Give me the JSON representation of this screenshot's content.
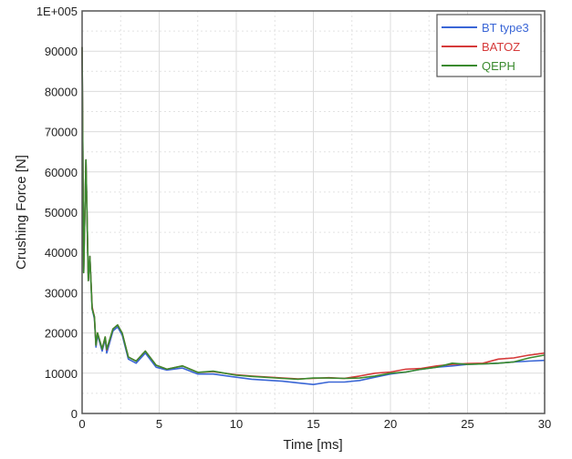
{
  "chart_data": {
    "type": "line",
    "xlabel": "Time [ms]",
    "ylabel": "Crushing Force [N]",
    "xlim": [
      0,
      30
    ],
    "ylim": [
      0,
      100000
    ],
    "xticks": [
      0,
      5,
      10,
      15,
      20,
      25,
      30
    ],
    "xtick_labels": [
      "0",
      "5",
      "10",
      "15",
      "20",
      "25",
      "30"
    ],
    "yticks": [
      0,
      10000,
      20000,
      30000,
      40000,
      50000,
      60000,
      70000,
      80000,
      90000,
      100000
    ],
    "ytick_labels": [
      "0",
      "10000",
      "20000",
      "30000",
      "40000",
      "50000",
      "60000",
      "70000",
      "80000",
      "90000",
      "1E+005"
    ],
    "grid": true,
    "legend_position": "top-right",
    "series": [
      {
        "name": "BT type3",
        "color": "#3a66d6",
        "x": [
          0,
          0.1,
          0.25,
          0.4,
          0.5,
          0.65,
          0.8,
          0.9,
          1.0,
          1.3,
          1.5,
          1.6,
          2.0,
          2.3,
          2.6,
          3.0,
          3.5,
          4.1,
          4.8,
          5.5,
          6.5,
          7.5,
          8.5,
          10,
          11,
          13,
          14,
          15,
          16,
          17,
          18,
          19,
          20,
          21,
          22,
          23,
          24,
          25,
          26,
          27,
          28,
          29,
          30
        ],
        "y": [
          91000,
          35000,
          63000,
          33000,
          39000,
          26000,
          23500,
          16500,
          19500,
          15500,
          18500,
          15000,
          20500,
          21500,
          19500,
          13500,
          12500,
          15000,
          11500,
          10800,
          11300,
          9800,
          9800,
          9000,
          8500,
          8000,
          7600,
          7200,
          7800,
          7800,
          8200,
          9000,
          9800,
          10300,
          11000,
          11500,
          11800,
          12200,
          12300,
          12500,
          12800,
          13000,
          13200
        ]
      },
      {
        "name": "BATOZ",
        "color": "#d63a3a",
        "x": [
          0,
          0.1,
          0.25,
          0.4,
          0.5,
          0.65,
          0.8,
          0.9,
          1.0,
          1.3,
          1.5,
          1.6,
          2.0,
          2.3,
          2.6,
          3.0,
          3.5,
          4.1,
          4.8,
          5.5,
          6.5,
          7.5,
          8.5,
          10,
          11,
          13,
          14,
          15,
          16,
          17,
          18,
          19,
          20,
          21,
          22,
          23,
          24,
          25,
          26,
          27,
          28,
          29,
          30
        ],
        "y": [
          91000,
          35000,
          63000,
          33000,
          39000,
          26500,
          24000,
          17000,
          20000,
          16000,
          19000,
          15800,
          21000,
          22000,
          20000,
          14000,
          13000,
          15500,
          12000,
          11000,
          11800,
          10200,
          10400,
          9600,
          9300,
          8800,
          8600,
          8700,
          8900,
          8700,
          9300,
          10000,
          10300,
          11000,
          11200,
          11800,
          12200,
          12400,
          12500,
          13500,
          13800,
          14500,
          15000
        ]
      },
      {
        "name": "QEPH",
        "color": "#3a8a2e",
        "x": [
          0,
          0.1,
          0.25,
          0.4,
          0.5,
          0.65,
          0.8,
          0.9,
          1.0,
          1.3,
          1.5,
          1.6,
          2.0,
          2.3,
          2.6,
          3.0,
          3.5,
          4.1,
          4.8,
          5.5,
          6.5,
          7.5,
          8.5,
          10,
          11,
          13,
          14,
          15,
          16,
          17,
          18,
          19,
          20,
          21,
          22,
          23,
          24,
          25,
          26,
          27,
          28,
          29,
          30
        ],
        "y": [
          91000,
          35000,
          63000,
          33000,
          39000,
          26000,
          24000,
          17000,
          20000,
          16000,
          19000,
          16000,
          21000,
          22000,
          20000,
          14000,
          13000,
          15500,
          12000,
          11000,
          11800,
          10200,
          10500,
          9500,
          9200,
          8700,
          8500,
          8800,
          8800,
          8700,
          8800,
          9300,
          10000,
          10300,
          11000,
          11500,
          12500,
          12200,
          12300,
          12500,
          12800,
          13800,
          14500
        ]
      }
    ]
  }
}
